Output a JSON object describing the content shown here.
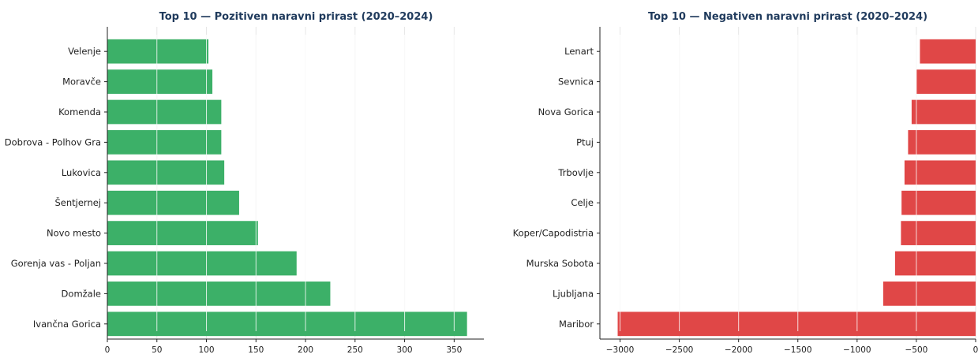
{
  "chart_data": [
    {
      "type": "bar",
      "orientation": "horizontal",
      "title": "Top 10 — Pozitiven naravni prirast (2020–2024)",
      "categories": [
        "Velenje",
        "Moravče",
        "Komenda",
        "Dobrova - Polhov Gra",
        "Lukovica",
        "Šentjernej",
        "Novo mesto",
        "Gorenja vas - Poljan",
        "Domžale",
        "Ivančna Gorica"
      ],
      "values": [
        102,
        106,
        115,
        115,
        118,
        133,
        152,
        191,
        225,
        363
      ],
      "xlim": [
        0,
        380
      ],
      "xticks": [
        0,
        50,
        100,
        150,
        200,
        250,
        300,
        350
      ],
      "grid": true,
      "color": "#3cb068"
    },
    {
      "type": "bar",
      "orientation": "horizontal",
      "title": "Top 10 — Negativen naravni prirast (2020–2024)",
      "categories": [
        "Lenart",
        "Sevnica",
        "Nova Gorica",
        "Ptuj",
        "Trbovlje",
        "Celje",
        "Koper/Capodistria",
        "Murska Sobota",
        "Ljubljana",
        "Maribor"
      ],
      "values": [
        -470,
        -500,
        -540,
        -570,
        -600,
        -625,
        -630,
        -680,
        -780,
        -3020
      ],
      "xlim": [
        -3170,
        0
      ],
      "xticks": [
        -3000,
        -2500,
        -2000,
        -1500,
        -1000,
        -500,
        0
      ],
      "grid": true,
      "color": "#e04747"
    }
  ]
}
